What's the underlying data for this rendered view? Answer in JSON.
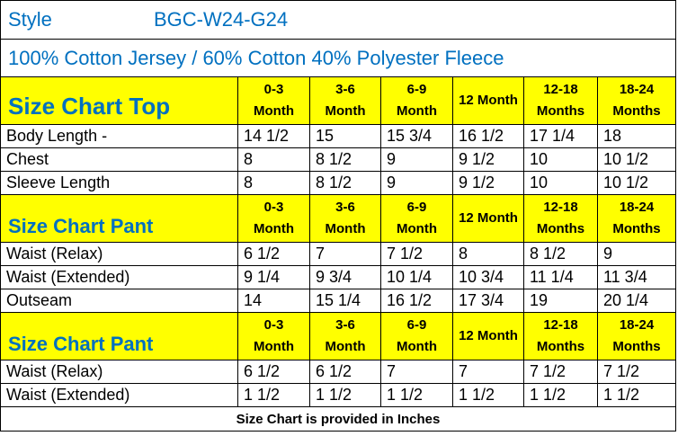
{
  "style_label": "Style",
  "style_code": "BGC-W24-G24",
  "fabric": "100% Cotton Jersey / 60% Cotton 40% Polyester Fleece",
  "sections": [
    {
      "heading": "Size Chart Top",
      "columns": [
        {
          "top": "0-3",
          "bottom": "Month"
        },
        {
          "top": "3-6",
          "bottom": "Month"
        },
        {
          "top": "6-9",
          "bottom": "Month"
        },
        {
          "label": "12 Month"
        },
        {
          "top": "12-18",
          "bottom": "Months"
        },
        {
          "top": "18-24",
          "bottom": "Months"
        }
      ],
      "rows": [
        [
          "Body Length -",
          "14 1/2",
          "15",
          "15 3/4",
          "16 1/2",
          "17 1/4",
          "18"
        ],
        [
          "Chest",
          "8",
          "8 1/2",
          "9",
          "9 1/2",
          "10",
          "10 1/2"
        ],
        [
          "Sleeve Length",
          "8",
          "8 1/2",
          "9",
          "9 1/2",
          "10",
          "10 1/2"
        ]
      ]
    },
    {
      "heading": "Size Chart Pant",
      "columns": [
        {
          "top": "0-3",
          "bottom": "Month"
        },
        {
          "top": "3-6",
          "bottom": "Month"
        },
        {
          "top": "6-9",
          "bottom": "Month"
        },
        {
          "label": "12 Month"
        },
        {
          "top": "12-18",
          "bottom": "Months"
        },
        {
          "top": "18-24",
          "bottom": "Months"
        }
      ],
      "rows": [
        [
          "Waist (Relax)",
          "6 1/2",
          "7",
          "7 1/2",
          "8",
          "8 1/2",
          "9"
        ],
        [
          "Waist (Extended)",
          "9 1/4",
          "9 3/4",
          "10 1/4",
          "10 3/4",
          "11 1/4",
          "11 3/4"
        ],
        [
          "Outseam",
          "14",
          "15 1/4",
          "16 1/2",
          "17 3/4",
          "19",
          "20 1/4"
        ]
      ]
    },
    {
      "heading": "Size Chart Pant",
      "columns": [
        {
          "top": "0-3",
          "bottom": "Month"
        },
        {
          "top": "3-6",
          "bottom": "Month"
        },
        {
          "top": "6-9",
          "bottom": "Month"
        },
        {
          "label": "12 Month"
        },
        {
          "top": "12-18",
          "bottom": "Months"
        },
        {
          "top": "18-24",
          "bottom": "Months"
        }
      ],
      "rows": [
        [
          "Waist (Relax)",
          "6 1/2",
          "6 1/2",
          "7",
          "7",
          "7 1/2",
          "7 1/2"
        ],
        [
          "Waist (Extended)",
          "1 1/2",
          "1 1/2",
          "1 1/2",
          "1 1/2",
          "1 1/2",
          "1 1/2"
        ]
      ]
    }
  ],
  "footer": "Size Chart is provided in Inches"
}
